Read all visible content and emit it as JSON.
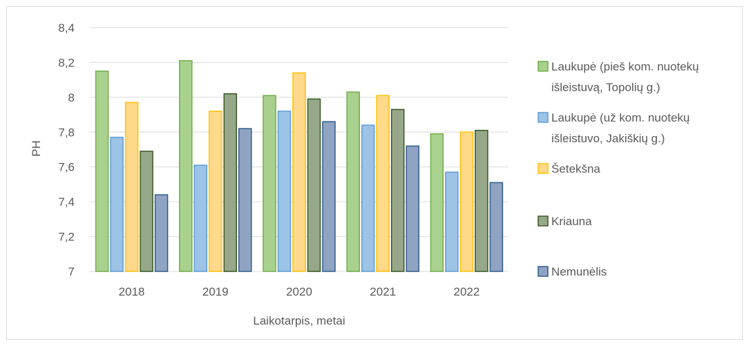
{
  "chart_data": {
    "type": "bar",
    "title": "",
    "xlabel": "Laikotarpis, metai",
    "ylabel": "PH",
    "ylim": [
      7,
      8.4
    ],
    "yticks": [
      "7",
      "7,2",
      "7,4",
      "7,6",
      "7,8",
      "8",
      "8,2",
      "8,4"
    ],
    "ytick_values": [
      7,
      7.2,
      7.4,
      7.6,
      7.8,
      8,
      8.2,
      8.4
    ],
    "categories": [
      "2018",
      "2019",
      "2020",
      "2021",
      "2022"
    ],
    "grid": true,
    "legend_position": "right",
    "series": [
      {
        "name": "Laukupė (pieš kom. nuotekų išleistuvą, Topolių g.)",
        "legend_lines": [
          "Laukupė (pieš kom. nuotekų",
          "išleistuvą, Topolių g.)"
        ],
        "color": "#a9d18e",
        "stroke": "#70ad47",
        "values": [
          8.15,
          8.21,
          8.01,
          8.03,
          7.79
        ]
      },
      {
        "name": "Laukupė (už kom. nuotekų išleistuvo, Jakiškių g.)",
        "legend_lines": [
          "Laukupė (už kom. nuotekų",
          "išleistuvo, Jakiškių g.)"
        ],
        "color": "#9dc3e6",
        "stroke": "#5b9bd5",
        "values": [
          7.77,
          7.61,
          7.92,
          7.84,
          7.57
        ]
      },
      {
        "name": "Šetekšna",
        "legend_lines": [
          "Šetekšna"
        ],
        "color": "#ffd98a",
        "stroke": "#ffc000",
        "values": [
          7.97,
          7.92,
          8.14,
          8.01,
          7.8
        ]
      },
      {
        "name": "Kriauna",
        "legend_lines": [
          "Kriauna"
        ],
        "color": "#96a889",
        "stroke": "#375623",
        "values": [
          7.69,
          8.02,
          7.99,
          7.93,
          7.81
        ]
      },
      {
        "name": "Nemunėlis",
        "legend_lines": [
          "Nemunėlis"
        ],
        "color": "#8ea4c2",
        "stroke": "#2e5b8c",
        "values": [
          7.44,
          7.82,
          7.86,
          7.72,
          7.51
        ]
      }
    ]
  }
}
